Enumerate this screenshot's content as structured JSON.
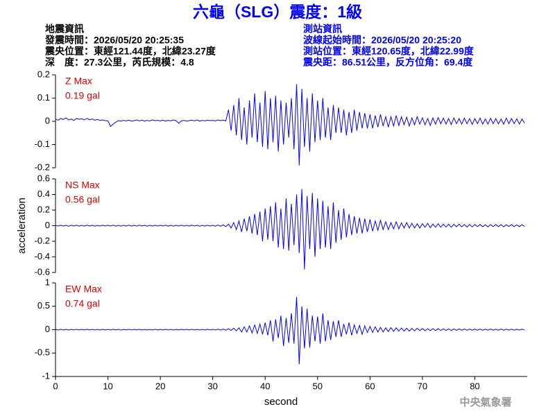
{
  "header": {
    "title": "六龜（SLG）震度：1級",
    "left": [
      "地震資訊",
      "發震時間：2026/05/20 20:25:35",
      "震央位置：東經121.44度，北緯23.27度",
      "深　度：27.3公里，芮氏規模：4.8"
    ],
    "right": [
      "測站資訊",
      "波線起始時間：2026/05/20 20:25:20",
      "測站位置：東經120.65度，北緯22.99度",
      "震央距：86.51公里，反方位角：69.4度"
    ]
  },
  "footer": "中央氣象署",
  "chart_data": [
    {
      "type": "line",
      "annotations": [
        "Z Max",
        "0.19 gal"
      ],
      "color": "#0000ff",
      "xlim": [
        0,
        90
      ],
      "ylim": [
        -0.2,
        0.2
      ],
      "yticks": [
        0.2,
        0.1,
        0,
        -0.1,
        -0.2
      ],
      "x": [
        0,
        0.5,
        1,
        1.5,
        2,
        2.5,
        3,
        3.5,
        4,
        4.5,
        5,
        5.5,
        6,
        6.5,
        7,
        7.5,
        8,
        8.5,
        9,
        9.5,
        10,
        10.5,
        11,
        11.5,
        12,
        12.5,
        13,
        13.5,
        14,
        14.5,
        15,
        15.5,
        16,
        16.5,
        17,
        17.5,
        18,
        18.5,
        19,
        19.5,
        20,
        20.5,
        21,
        21.5,
        22,
        22.5,
        23,
        23.5,
        24,
        24.5,
        25,
        25.5,
        26,
        26.5,
        27,
        27.5,
        28,
        28.5,
        29,
        29.5,
        30,
        30.5,
        31,
        31.5,
        32,
        32.5,
        33,
        33.5,
        34,
        34.5,
        35,
        35.5,
        36,
        36.5,
        37,
        37.5,
        38,
        38.5,
        39,
        39.5,
        40,
        40.5,
        41,
        41.5,
        42,
        42.5,
        43,
        43.5,
        44,
        44.5,
        45,
        45.5,
        46,
        46.5,
        47,
        47.5,
        48,
        48.5,
        49,
        49.5,
        50,
        50.5,
        51,
        51.5,
        52,
        52.5,
        53,
        53.5,
        54,
        54.5,
        55,
        55.5,
        56,
        56.5,
        57,
        57.5,
        58,
        58.5,
        59,
        59.5,
        60,
        60.5,
        61,
        61.5,
        62,
        62.5,
        63,
        63.5,
        64,
        64.5,
        65,
        65.5,
        66,
        66.5,
        67,
        67.5,
        68,
        68.5,
        69,
        69.5,
        70,
        70.5,
        71,
        71.5,
        72,
        72.5,
        73,
        73.5,
        74,
        74.5,
        75,
        75.5,
        76,
        76.5,
        77,
        77.5,
        78,
        78.5,
        79,
        79.5,
        80,
        80.5,
        81,
        81.5,
        82,
        82.5,
        83,
        83.5,
        84,
        84.5,
        85,
        85.5,
        86,
        86.5,
        87,
        87.5,
        88,
        88.5,
        89,
        89.5
      ],
      "values": [
        0.01,
        0.005,
        0.012,
        0.008,
        0.015,
        0.006,
        0.01,
        0.004,
        0.012,
        0.009,
        0.011,
        0.006,
        0.013,
        0.007,
        0.01,
        0.005,
        0.008,
        0.004,
        0.006,
        0.003,
        0.002,
        -0.022,
        -0.012,
        -0.004,
        0.003,
        0.001,
        0.004,
        0.002,
        0.005,
        0.001,
        0.003,
        0.006,
        0.002,
        0.005,
        0.001,
        0.004,
        0.002,
        0.006,
        0.003,
        0.004,
        0.002,
        0.005,
        0.001,
        0.004,
        0.002,
        0.006,
        0.003,
        -0.008,
        0.002,
        0.004,
        0.001,
        0.003,
        0.005,
        0.002,
        0.006,
        0.001,
        0.004,
        0.002,
        0.005,
        0.003,
        0.004,
        0.002,
        0.006,
        0.003,
        0.005,
        0.002,
        0.05,
        -0.04,
        0.07,
        -0.06,
        0.1,
        -0.08,
        0.06,
        -0.1,
        0.09,
        -0.07,
        0.12,
        -0.09,
        0.08,
        -0.11,
        0.13,
        -0.12,
        0.1,
        -0.09,
        0.11,
        -0.13,
        0.09,
        -0.1,
        0.08,
        -0.07,
        0.1,
        -0.12,
        0.16,
        -0.19,
        0.14,
        -0.11,
        0.1,
        -0.13,
        0.12,
        -0.09,
        0.09,
        -0.08,
        0.1,
        -0.07,
        0.06,
        -0.08,
        0.07,
        -0.05,
        0.06,
        -0.05,
        0.05,
        -0.06,
        0.04,
        -0.05,
        0.05,
        -0.04,
        0.04,
        -0.03,
        0.035,
        -0.03,
        0.03,
        -0.03,
        0.025,
        -0.025,
        0.03,
        -0.02,
        0.02,
        -0.025,
        0.02,
        -0.02,
        0.025,
        -0.018,
        0.02,
        -0.015,
        0.018,
        -0.02,
        0.015,
        -0.015,
        0.02,
        -0.012,
        0.015,
        -0.015,
        0.012,
        -0.018,
        0.015,
        -0.012,
        0.016,
        -0.01,
        0.014,
        -0.012,
        0.012,
        -0.014,
        0.015,
        -0.01,
        0.012,
        -0.012,
        0.014,
        -0.01,
        0.012,
        -0.013,
        0.012,
        -0.01,
        0.014,
        -0.012,
        0.01,
        -0.012,
        0.013,
        -0.01,
        0.012,
        -0.011,
        0.01,
        -0.012,
        0.014,
        -0.01,
        0.012,
        -0.01,
        0.011,
        -0.012,
        0.01,
        -0.008
      ]
    },
    {
      "type": "line",
      "annotations": [
        "NS Max",
        "0.56 gal"
      ],
      "color": "#0000ff",
      "y_label": "acceleration",
      "xlim": [
        0,
        90
      ],
      "ylim": [
        -0.6,
        0.6
      ],
      "yticks": [
        0.6,
        0.4,
        0.2,
        0,
        -0.2,
        -0.4,
        -0.6
      ],
      "x": [
        0,
        0.5,
        1,
        1.5,
        2,
        2.5,
        3,
        3.5,
        4,
        4.5,
        5,
        5.5,
        6,
        6.5,
        7,
        7.5,
        8,
        8.5,
        9,
        9.5,
        10,
        10.5,
        11,
        11.5,
        12,
        12.5,
        13,
        13.5,
        14,
        14.5,
        15,
        15.5,
        16,
        16.5,
        17,
        17.5,
        18,
        18.5,
        19,
        19.5,
        20,
        20.5,
        21,
        21.5,
        22,
        22.5,
        23,
        23.5,
        24,
        24.5,
        25,
        25.5,
        26,
        26.5,
        27,
        27.5,
        28,
        28.5,
        29,
        29.5,
        30,
        30.5,
        31,
        31.5,
        32,
        32.5,
        33,
        33.5,
        34,
        34.5,
        35,
        35.5,
        36,
        36.5,
        37,
        37.5,
        38,
        38.5,
        39,
        39.5,
        40,
        40.5,
        41,
        41.5,
        42,
        42.5,
        43,
        43.5,
        44,
        44.5,
        45,
        45.5,
        46,
        46.5,
        47,
        47.5,
        48,
        48.5,
        49,
        49.5,
        50,
        50.5,
        51,
        51.5,
        52,
        52.5,
        53,
        53.5,
        54,
        54.5,
        55,
        55.5,
        56,
        56.5,
        57,
        57.5,
        58,
        58.5,
        59,
        59.5,
        60,
        60.5,
        61,
        61.5,
        62,
        62.5,
        63,
        63.5,
        64,
        64.5,
        65,
        65.5,
        66,
        66.5,
        67,
        67.5,
        68,
        68.5,
        69,
        69.5,
        70,
        70.5,
        71,
        71.5,
        72,
        72.5,
        73,
        73.5,
        74,
        74.5,
        75,
        75.5,
        76,
        76.5,
        77,
        77.5,
        78,
        78.5,
        79,
        79.5,
        80,
        80.5,
        81,
        81.5,
        82,
        82.5,
        83,
        83.5,
        84,
        84.5,
        85,
        85.5,
        86,
        86.5,
        87,
        87.5,
        88,
        88.5,
        89,
        89.5
      ],
      "values": [
        0.005,
        -0.004,
        0.006,
        -0.005,
        0.004,
        -0.006,
        0.005,
        -0.004,
        0.006,
        -0.005,
        0.004,
        -0.005,
        0.006,
        -0.004,
        0.005,
        -0.006,
        0.004,
        -0.005,
        0.005,
        -0.004,
        0.005,
        -0.004,
        0.006,
        -0.005,
        0.004,
        -0.006,
        0.005,
        -0.004,
        0.006,
        -0.005,
        0.004,
        -0.005,
        0.006,
        -0.004,
        0.005,
        -0.006,
        0.004,
        -0.005,
        0.005,
        -0.004,
        0.005,
        -0.004,
        0.006,
        -0.005,
        0.004,
        -0.006,
        0.005,
        -0.004,
        0.006,
        -0.005,
        0.004,
        -0.005,
        0.006,
        -0.004,
        0.005,
        -0.006,
        0.004,
        -0.005,
        0.005,
        -0.004,
        0.005,
        -0.006,
        0.008,
        -0.007,
        0.01,
        -0.012,
        0.02,
        -0.03,
        0.04,
        -0.05,
        0.06,
        -0.08,
        0.09,
        -0.07,
        0.12,
        -0.1,
        0.15,
        -0.12,
        0.18,
        -0.2,
        0.22,
        -0.18,
        0.25,
        -0.2,
        0.3,
        -0.28,
        0.22,
        -0.3,
        0.35,
        -0.32,
        0.28,
        -0.25,
        0.4,
        -0.35,
        0.47,
        -0.56,
        0.38,
        -0.3,
        0.42,
        -0.4,
        0.35,
        -0.3,
        0.32,
        -0.28,
        0.25,
        -0.3,
        0.3,
        -0.22,
        0.2,
        -0.18,
        0.22,
        -0.15,
        0.15,
        -0.12,
        0.12,
        -0.1,
        0.1,
        -0.1,
        0.09,
        -0.08,
        0.08,
        -0.07,
        0.06,
        -0.06,
        0.07,
        -0.05,
        0.05,
        -0.05,
        0.04,
        -0.04,
        0.05,
        -0.04,
        0.035,
        -0.03,
        0.04,
        -0.03,
        0.03,
        -0.03,
        0.025,
        -0.03,
        0.025,
        -0.02,
        0.03,
        -0.025,
        0.02,
        -0.02,
        0.025,
        -0.02,
        0.02,
        -0.018,
        0.02,
        -0.02,
        0.018,
        -0.015,
        0.02,
        -0.015,
        0.016,
        -0.018,
        0.015,
        -0.015,
        0.015,
        -0.012,
        0.016,
        -0.014,
        0.012,
        -0.015,
        0.014,
        -0.012,
        0.015,
        -0.012,
        0.013,
        -0.014,
        0.012,
        -0.01,
        0.014,
        -0.012,
        0.01,
        -0.012,
        0.012,
        -0.01
      ]
    },
    {
      "type": "line",
      "annotations": [
        "EW Max",
        "0.74 gal"
      ],
      "color": "#0000ff",
      "x_label": "second",
      "xlim": [
        0,
        90
      ],
      "xticks": [
        0,
        10,
        20,
        30,
        40,
        50,
        60,
        70,
        80
      ],
      "ylim": [
        -1,
        1
      ],
      "yticks": [
        1,
        0.5,
        0,
        -0.5,
        -1
      ],
      "x": [
        0,
        0.5,
        1,
        1.5,
        2,
        2.5,
        3,
        3.5,
        4,
        4.5,
        5,
        5.5,
        6,
        6.5,
        7,
        7.5,
        8,
        8.5,
        9,
        9.5,
        10,
        10.5,
        11,
        11.5,
        12,
        12.5,
        13,
        13.5,
        14,
        14.5,
        15,
        15.5,
        16,
        16.5,
        17,
        17.5,
        18,
        18.5,
        19,
        19.5,
        20,
        20.5,
        21,
        21.5,
        22,
        22.5,
        23,
        23.5,
        24,
        24.5,
        25,
        25.5,
        26,
        26.5,
        27,
        27.5,
        28,
        28.5,
        29,
        29.5,
        30,
        30.5,
        31,
        31.5,
        32,
        32.5,
        33,
        33.5,
        34,
        34.5,
        35,
        35.5,
        36,
        36.5,
        37,
        37.5,
        38,
        38.5,
        39,
        39.5,
        40,
        40.5,
        41,
        41.5,
        42,
        42.5,
        43,
        43.5,
        44,
        44.5,
        45,
        45.5,
        46,
        46.5,
        47,
        47.5,
        48,
        48.5,
        49,
        49.5,
        50,
        50.5,
        51,
        51.5,
        52,
        52.5,
        53,
        53.5,
        54,
        54.5,
        55,
        55.5,
        56,
        56.5,
        57,
        57.5,
        58,
        58.5,
        59,
        59.5,
        60,
        60.5,
        61,
        61.5,
        62,
        62.5,
        63,
        63.5,
        64,
        64.5,
        65,
        65.5,
        66,
        66.5,
        67,
        67.5,
        68,
        68.5,
        69,
        69.5,
        70,
        70.5,
        71,
        71.5,
        72,
        72.5,
        73,
        73.5,
        74,
        74.5,
        75,
        75.5,
        76,
        76.5,
        77,
        77.5,
        78,
        78.5,
        79,
        79.5,
        80,
        80.5,
        81,
        81.5,
        82,
        82.5,
        83,
        83.5,
        84,
        84.5,
        85,
        85.5,
        86,
        86.5,
        87,
        87.5,
        88,
        88.5,
        89,
        89.5
      ],
      "values": [
        0.006,
        -0.005,
        0.007,
        -0.006,
        0.005,
        -0.007,
        0.006,
        -0.005,
        0.007,
        -0.006,
        0.006,
        -0.005,
        0.007,
        -0.006,
        0.005,
        -0.007,
        0.006,
        -0.005,
        0.007,
        -0.006,
        0.006,
        -0.005,
        0.007,
        -0.006,
        0.005,
        -0.007,
        0.006,
        -0.005,
        0.007,
        -0.006,
        0.006,
        -0.005,
        0.007,
        -0.006,
        0.005,
        -0.007,
        0.006,
        -0.005,
        0.007,
        -0.006,
        0.006,
        -0.005,
        0.007,
        -0.006,
        0.005,
        -0.007,
        0.006,
        -0.005,
        0.007,
        -0.006,
        0.006,
        -0.005,
        0.007,
        -0.006,
        0.005,
        -0.007,
        0.006,
        -0.005,
        0.007,
        -0.006,
        0.006,
        -0.007,
        0.01,
        -0.008,
        0.012,
        -0.01,
        0.02,
        -0.015,
        0.03,
        -0.025,
        0.04,
        -0.05,
        0.06,
        -0.05,
        0.08,
        -0.07,
        0.1,
        -0.08,
        0.12,
        -0.1,
        0.15,
        -0.12,
        0.2,
        -0.25,
        0.22,
        -0.18,
        0.3,
        -0.35,
        0.25,
        -0.28,
        0.35,
        -0.3,
        0.7,
        -0.74,
        0.5,
        -0.4,
        0.45,
        -0.38,
        0.3,
        -0.25,
        0.28,
        -0.3,
        0.35,
        -0.25,
        0.2,
        -0.22,
        0.18,
        -0.15,
        0.2,
        -0.15,
        0.12,
        -0.1,
        0.15,
        -0.12,
        0.1,
        -0.08,
        0.09,
        -0.1,
        0.08,
        -0.06,
        0.07,
        -0.06,
        0.06,
        -0.05,
        0.05,
        -0.05,
        0.04,
        -0.04,
        0.045,
        -0.035,
        0.04,
        -0.03,
        0.035,
        -0.03,
        0.03,
        -0.03,
        0.025,
        -0.025,
        0.03,
        -0.02,
        0.025,
        -0.02,
        0.02,
        -0.02,
        0.022,
        -0.018,
        0.02,
        -0.015,
        0.018,
        -0.016,
        0.015,
        -0.015,
        0.016,
        -0.014,
        0.015,
        -0.012,
        0.014,
        -0.013,
        0.012,
        -0.012,
        0.013,
        -0.01,
        0.012,
        -0.012,
        0.01,
        -0.011,
        0.012,
        -0.01,
        0.011,
        -0.01,
        0.012,
        -0.01,
        0.01,
        -0.009,
        0.011,
        -0.01,
        0.01,
        -0.009,
        0.01,
        -0.008
      ]
    }
  ]
}
